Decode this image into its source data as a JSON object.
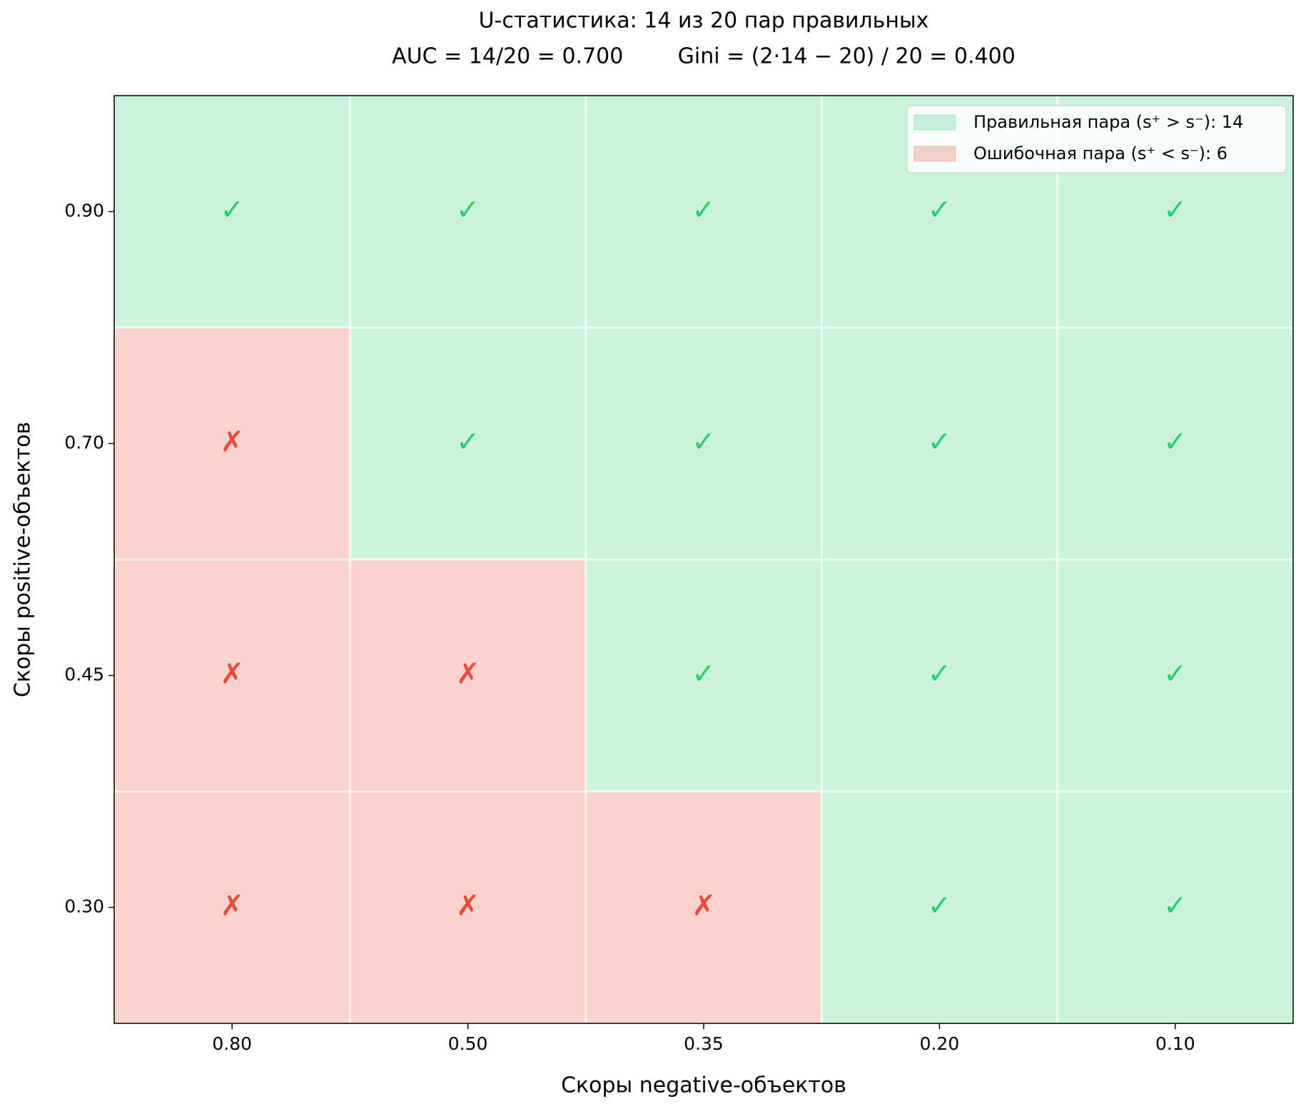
{
  "chart_data": {
    "type": "matrix",
    "title": "U-статистика: 14 из 20 пар правильных",
    "subtitle": "AUC = 14/20 = 0.700        Gini = (2·14 − 20) / 20 = 0.400",
    "x_label": "Скоры negative-объектов",
    "y_label": "Скоры positive-объектов",
    "categories": [
      "0.80",
      "0.50",
      "0.35",
      "0.20",
      "0.10"
    ],
    "y_categories": [
      "0.90",
      "0.70",
      "0.45",
      "0.30"
    ],
    "cells": [
      [
        "✓",
        "✓",
        "✓",
        "✓",
        "✓"
      ],
      [
        "✗",
        "✓",
        "✓",
        "✓",
        "✓"
      ],
      [
        "✗",
        "✗",
        "✓",
        "✓",
        "✓"
      ],
      [
        "✗",
        "✗",
        "✗",
        "✓",
        "✓"
      ]
    ],
    "series": [
      {
        "name": "Правильная пара (s⁺ > s⁻): 14",
        "color": "#2ecc71",
        "symbol": "✓"
      },
      {
        "name": "Ошибочная пара (s⁺ < s⁻): 6",
        "color": "#e74c3c",
        "symbol": "✗"
      }
    ],
    "legend": "upper right"
  }
}
